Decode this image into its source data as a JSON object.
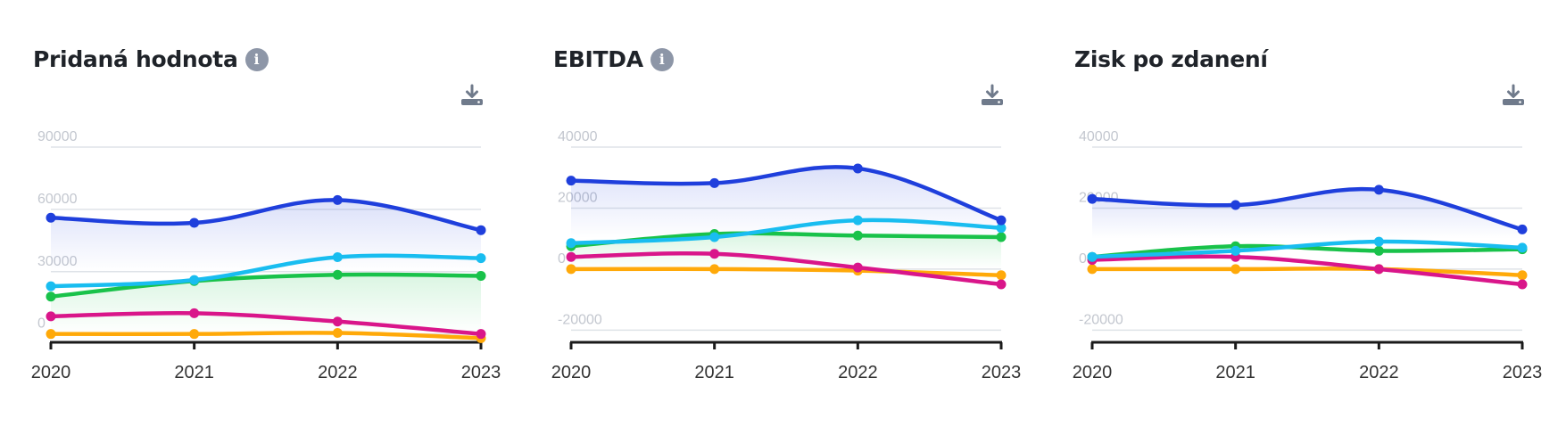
{
  "colors": {
    "blue": "#1f3fdc",
    "cyan": "#19bdf0",
    "green": "#19c24a",
    "magenta": "#d9168a",
    "orange": "#ffa909",
    "axis": "#1a1a1a",
    "grid": "#dfe3e8",
    "tick_text": "#c3c7cf"
  },
  "icons": {
    "info": "info-icon",
    "download": "download-icon"
  },
  "panels": [
    {
      "title": "Pridaná hodnota",
      "has_info": true
    },
    {
      "title": "EBITDA",
      "has_info": true
    },
    {
      "title": "Zisk po zdanení",
      "has_info": false
    }
  ],
  "chart_data": [
    {
      "type": "line",
      "title": "Pridaná hodnota",
      "x": [
        "2020",
        "2021",
        "2022",
        "2023"
      ],
      "yticks": [
        0,
        30000,
        60000,
        90000
      ],
      "ylim": [
        -4000,
        90000
      ],
      "grid": true,
      "series": [
        {
          "color": "blue",
          "values": [
            56000,
            53500,
            64500,
            50000
          ],
          "area": true
        },
        {
          "color": "cyan",
          "values": [
            23000,
            26000,
            37000,
            36500
          ]
        },
        {
          "color": "green",
          "values": [
            18000,
            25500,
            28500,
            28000
          ],
          "area": true
        },
        {
          "color": "magenta",
          "values": [
            8500,
            10000,
            6000,
            0
          ]
        },
        {
          "color": "orange",
          "values": [
            0,
            0,
            500,
            -2000
          ]
        }
      ]
    },
    {
      "type": "line",
      "title": "EBITDA",
      "x": [
        "2020",
        "2021",
        "2022",
        "2023"
      ],
      "yticks": [
        -20000,
        0,
        20000,
        40000
      ],
      "ylim": [
        -24000,
        40000
      ],
      "grid": true,
      "series": [
        {
          "color": "blue",
          "values": [
            29000,
            28200,
            33000,
            16000
          ],
          "area": true
        },
        {
          "color": "cyan",
          "values": [
            8500,
            10500,
            16000,
            13500
          ]
        },
        {
          "color": "green",
          "values": [
            7500,
            11500,
            11000,
            10500
          ],
          "area": true
        },
        {
          "color": "magenta",
          "values": [
            4000,
            5000,
            500,
            -5000
          ]
        },
        {
          "color": "orange",
          "values": [
            0,
            0,
            -500,
            -2000
          ]
        }
      ]
    },
    {
      "type": "line",
      "title": "Zisk po zdanení",
      "x": [
        "2020",
        "2021",
        "2022",
        "2023"
      ],
      "yticks": [
        -20000,
        0,
        20000,
        40000
      ],
      "ylim": [
        -24000,
        40000
      ],
      "grid": true,
      "series": [
        {
          "color": "blue",
          "values": [
            23000,
            21000,
            26000,
            13000
          ],
          "area": true
        },
        {
          "color": "cyan",
          "values": [
            4000,
            6000,
            9000,
            7000
          ]
        },
        {
          "color": "green",
          "values": [
            4000,
            7500,
            6000,
            6500
          ]
        },
        {
          "color": "magenta",
          "values": [
            3000,
            4000,
            0,
            -5000
          ]
        },
        {
          "color": "orange",
          "values": [
            0,
            0,
            0,
            -2000
          ]
        }
      ]
    }
  ]
}
